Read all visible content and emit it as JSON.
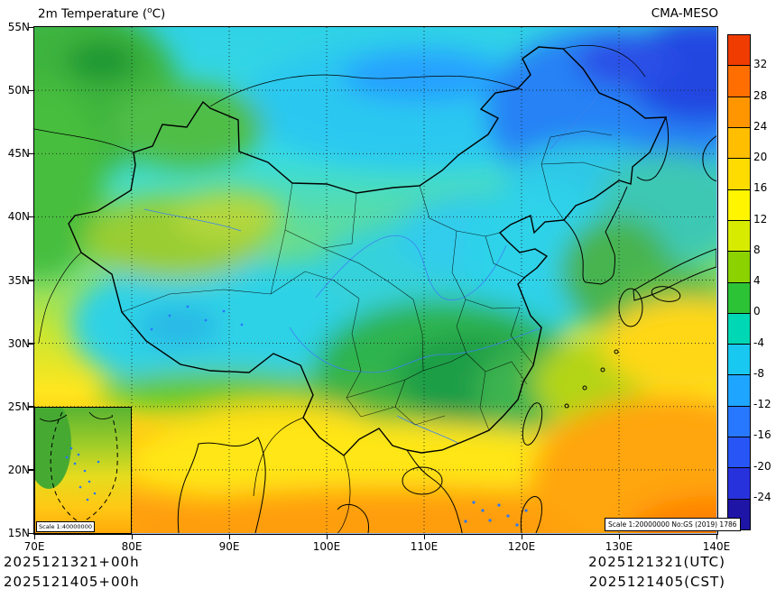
{
  "header": {
    "title_prefix": "2m Temperature (",
    "title_sup": "o",
    "title_suffix": "C)",
    "model": "CMA-MESO"
  },
  "axes": {
    "lat_labels": [
      "55N",
      "50N",
      "45N",
      "40N",
      "35N",
      "30N",
      "25N",
      "20N",
      "15N"
    ],
    "lon_labels": [
      "70E",
      "80E",
      "90E",
      "100E",
      "110E",
      "120E",
      "130E",
      "140E"
    ]
  },
  "colorbar": {
    "labels": [
      "32",
      "28",
      "24",
      "20",
      "16",
      "12",
      "8",
      "4",
      "0",
      "-4",
      "-8",
      "-12",
      "-16",
      "-20",
      "-24"
    ],
    "colors": [
      "#f03c00",
      "#ff6e00",
      "#ff9600",
      "#ffbe00",
      "#ffdc00",
      "#fff500",
      "#d7eb00",
      "#8cd200",
      "#2dc337",
      "#00d7b4",
      "#19c8f0",
      "#1ea5ff",
      "#2878ff",
      "#2855f5",
      "#2832dc",
      "#1e14a5"
    ]
  },
  "map": {
    "scale_note": "Scale 1:20000000 No:GS (2019) 1786",
    "inset_scale": "Scale 1:40000000"
  },
  "footer": {
    "init_utc": "2025121321+00h",
    "init_cst": "2025121405+00h",
    "valid_utc": "2025121321(UTC)",
    "valid_cst": "2025121405(CST)"
  }
}
